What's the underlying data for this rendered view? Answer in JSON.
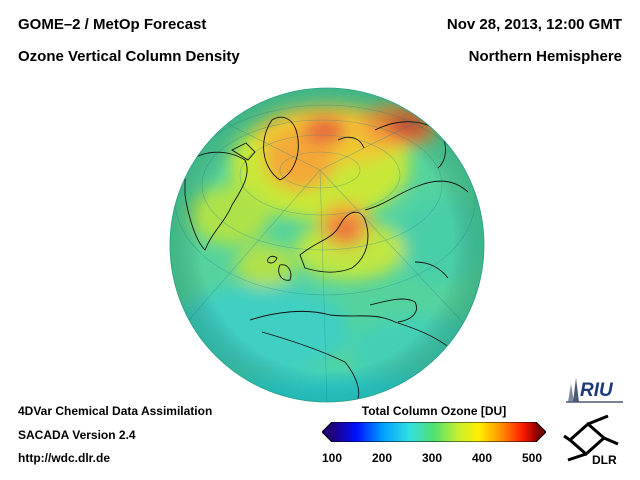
{
  "header": {
    "left_line1": "GOME–2 / MetOp Forecast",
    "left_line2": "Ozone Vertical Column Density",
    "right_line1": "Nov 28, 2013, 12:00 GMT",
    "right_line2": "Northern Hemisphere"
  },
  "footer": {
    "line1": "4DVar Chemical Data Assimilation",
    "line2": "SACADA Version 2.4",
    "line3": "http://wdc.dlr.de"
  },
  "colorbar": {
    "title": "Total Column Ozone [DU]",
    "ticks": [
      "100",
      "200",
      "300",
      "400",
      "500"
    ],
    "colors": [
      "#20007a",
      "#0010ff",
      "#00a0ff",
      "#30e0e0",
      "#50e070",
      "#c8f030",
      "#fff000",
      "#ff9000",
      "#ff2000",
      "#a00000"
    ]
  },
  "logos": {
    "riu": "RIU",
    "dlr": "DLR"
  },
  "map": {
    "projection": "orthographic",
    "hemisphere": "Northern Hemisphere",
    "background_color": "#55d39d"
  }
}
